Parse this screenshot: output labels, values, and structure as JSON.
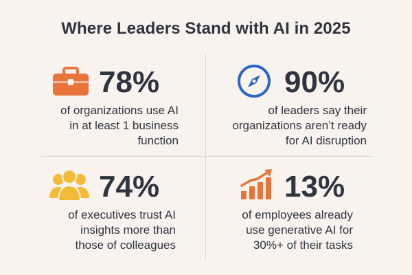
{
  "title": "Where Leaders Stand with AI in 2025",
  "stats": [
    {
      "icon": "briefcase-icon",
      "value": "78%",
      "lines": [
        "of organizations use AI",
        "in at least 1 business",
        "function"
      ],
      "color": "#e9743b"
    },
    {
      "icon": "compass-icon",
      "value": "90%",
      "lines": [
        "of leaders say their",
        "organizations aren’t ready",
        "for AI disruption"
      ],
      "color": "#2b67c4"
    },
    {
      "icon": "people-icon",
      "value": "74%",
      "lines": [
        "of executives trust AI",
        "insights more than",
        "those of colleagues"
      ],
      "color": "#f3bb38"
    },
    {
      "icon": "growth-chart-icon",
      "value": "13%",
      "lines": [
        "of employees already",
        "use generative AI for",
        "30%+ of their tasks"
      ],
      "color": "#e9743b"
    }
  ]
}
